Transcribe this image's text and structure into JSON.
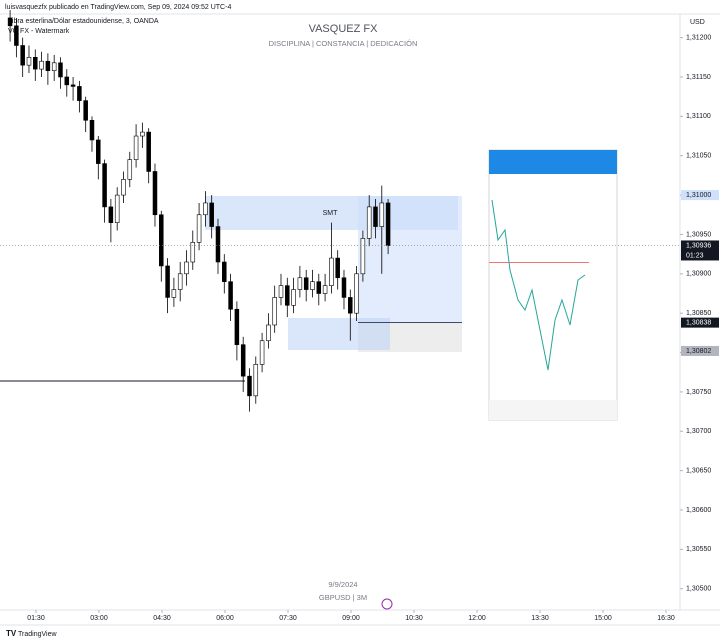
{
  "header": {
    "publisher": "luisvasquezfx publicado en TradingView.com, Sep 09, 2024 09:52 UTC-4",
    "symbol": "Libra esterlina/Dólar estadounidense, 3, OANDA",
    "watermark_note": "VG FX - Watermark",
    "footer": "TradingView"
  },
  "chart_data": {
    "type": "candlestick",
    "title": "VASQUEZ FX",
    "subtitle": "DISCIPLINA  |  CONSTANCIA  |  DEDICACIÓN",
    "watermark_date": "9/9/2024",
    "watermark_symbol": "GBPUSD | 3M",
    "annotation": "SMT",
    "currency": "USD",
    "up_color": "#ffffff",
    "down_color": "#000000",
    "wick_color": "#000000",
    "xlim": [
      38.6,
      1010
    ],
    "xticks": [
      {
        "value": 90,
        "label": "01:30"
      },
      {
        "value": 180,
        "label": "03:00"
      },
      {
        "value": 270,
        "label": "04:30"
      },
      {
        "value": 360,
        "label": "06:00"
      },
      {
        "value": 450,
        "label": "07:30"
      },
      {
        "value": 540,
        "label": "09:00"
      },
      {
        "value": 630,
        "label": "10:30"
      },
      {
        "value": 720,
        "label": "12:00"
      },
      {
        "value": 810,
        "label": "13:30"
      },
      {
        "value": 900,
        "label": "15:00"
      },
      {
        "value": 990,
        "label": "16:30"
      }
    ],
    "ylim": [
      1.30473,
      1.3123
    ],
    "yticks": [
      {
        "value": 1.312,
        "label": "1,31200"
      },
      {
        "value": 1.3115,
        "label": "1,31150"
      },
      {
        "value": 1.311,
        "label": "1,31100"
      },
      {
        "value": 1.3105,
        "label": "1,31050"
      },
      {
        "value": 1.31,
        "label": "1,31000"
      },
      {
        "value": 1.3095,
        "label": "1,30950"
      },
      {
        "value": 1.309,
        "label": "1,30900"
      },
      {
        "value": 1.3085,
        "label": "1,30850"
      },
      {
        "value": 1.308,
        "label": "1,30800"
      },
      {
        "value": 1.3075,
        "label": "1,30750"
      },
      {
        "value": 1.307,
        "label": "1,30700"
      },
      {
        "value": 1.3065,
        "label": "1,30650"
      },
      {
        "value": 1.306,
        "label": "1,30600"
      },
      {
        "value": 1.3055,
        "label": "1,30550"
      },
      {
        "value": 1.305,
        "label": "1,30500"
      }
    ],
    "price_labels": [
      {
        "value": 1.31,
        "label": "1,31000",
        "color": "#cfe0fb",
        "text_color": "#131722"
      },
      {
        "value": 1.30936,
        "label": "1,30936",
        "color": "#131722",
        "text_color": "#ffffff",
        "countdown": "01:23"
      },
      {
        "value": 1.30838,
        "label": "1,30838",
        "color": "#131722",
        "text_color": "#ffffff"
      },
      {
        "value": 1.30802,
        "label": "1,30802",
        "color": "#b2b5be",
        "text_color": "#131722"
      }
    ],
    "x": [
      53,
      62,
      71,
      80,
      89,
      98,
      107,
      116,
      125,
      134,
      143,
      152,
      161,
      170,
      179,
      188,
      197,
      206,
      215,
      224,
      233,
      242,
      251,
      260,
      269,
      278,
      287,
      296,
      305,
      314,
      323,
      332,
      341,
      350,
      359,
      368,
      377,
      386,
      395,
      404,
      413,
      422,
      431,
      440,
      449,
      458,
      467,
      476,
      485,
      494,
      503,
      512,
      521,
      530,
      539,
      548,
      557,
      566,
      575,
      584,
      593
    ],
    "open": [
      1.31225,
      1.31215,
      1.3119,
      1.31165,
      1.31175,
      1.3116,
      1.3117,
      1.31158,
      1.31168,
      1.3115,
      1.3114,
      1.31138,
      1.3112,
      1.31095,
      1.3107,
      1.3104,
      1.30985,
      1.30965,
      1.31,
      1.3102,
      1.31045,
      1.31075,
      1.3108,
      1.3103,
      1.30975,
      1.3091,
      1.3087,
      1.3088,
      1.309,
      1.30915,
      1.3094,
      1.30975,
      1.3099,
      1.3096,
      1.30915,
      1.3089,
      1.30855,
      1.3081,
      1.3077,
      1.30745,
      1.30785,
      1.30815,
      1.30835,
      1.3087,
      1.30885,
      1.3086,
      1.3088,
      1.30895,
      1.3088,
      1.3089,
      1.30875,
      1.30885,
      1.3092,
      1.30895,
      1.3087,
      1.3085,
      1.309,
      1.30945,
      1.30985,
      1.3096,
      1.3099
    ],
    "high": [
      1.31235,
      1.31225,
      1.312,
      1.3119,
      1.31185,
      1.31182,
      1.3118,
      1.31178,
      1.31175,
      1.3116,
      1.3115,
      1.31145,
      1.31125,
      1.311,
      1.31075,
      1.31045,
      1.30995,
      1.3101,
      1.3103,
      1.31055,
      1.3109,
      1.31092,
      1.31085,
      1.3104,
      1.3098,
      1.3092,
      1.30895,
      1.30915,
      1.3093,
      1.30955,
      1.3099,
      1.31005,
      1.31,
      1.3097,
      1.30925,
      1.309,
      1.30865,
      1.3082,
      1.3078,
      1.30795,
      1.30825,
      1.3085,
      1.30885,
      1.309,
      1.30895,
      1.30895,
      1.3091,
      1.30905,
      1.30905,
      1.309,
      1.309,
      1.30965,
      1.3093,
      1.30905,
      1.3088,
      1.3091,
      1.30955,
      1.31,
      1.30995,
      1.31012,
      1.30995
    ],
    "low": [
      1.31195,
      1.31175,
      1.3115,
      1.31155,
      1.31145,
      1.3115,
      1.3114,
      1.31145,
      1.31135,
      1.31125,
      1.3112,
      1.31105,
      1.3108,
      1.31055,
      1.3102,
      1.30965,
      1.3094,
      1.30955,
      1.3099,
      1.3101,
      1.31035,
      1.3106,
      1.31015,
      1.3096,
      1.3089,
      1.3085,
      1.30858,
      1.30865,
      1.30885,
      1.30905,
      1.3093,
      1.3096,
      1.30945,
      1.309,
      1.30875,
      1.3084,
      1.3079,
      1.3075,
      1.30725,
      1.30735,
      1.30775,
      1.30805,
      1.30825,
      1.3086,
      1.30845,
      1.3085,
      1.3087,
      1.30865,
      1.3087,
      1.3086,
      1.30865,
      1.30875,
      1.3088,
      1.30855,
      1.30815,
      1.3084,
      1.3089,
      1.30935,
      1.30945,
      1.309,
      1.30925
    ],
    "close": [
      1.31215,
      1.3119,
      1.31165,
      1.31175,
      1.3116,
      1.3117,
      1.31158,
      1.31168,
      1.3115,
      1.3114,
      1.31138,
      1.3112,
      1.31095,
      1.3107,
      1.3104,
      1.30985,
      1.30965,
      1.31,
      1.3102,
      1.31045,
      1.31075,
      1.3108,
      1.3103,
      1.30975,
      1.3091,
      1.3087,
      1.3088,
      1.309,
      1.30915,
      1.3094,
      1.30975,
      1.3099,
      1.3096,
      1.30915,
      1.3089,
      1.30855,
      1.3081,
      1.3077,
      1.30745,
      1.30785,
      1.30815,
      1.30835,
      1.3087,
      1.30885,
      1.3086,
      1.3088,
      1.30895,
      1.3088,
      1.3089,
      1.30875,
      1.30885,
      1.3092,
      1.30895,
      1.3087,
      1.3085,
      1.309,
      1.30945,
      1.30985,
      1.3096,
      1.3099,
      1.30936
    ]
  }
}
